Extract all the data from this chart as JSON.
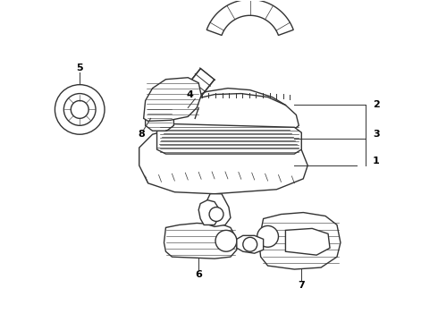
{
  "background_color": "#ffffff",
  "line_color": "#333333",
  "label_color": "#000000",
  "figsize": [
    4.9,
    3.6
  ],
  "dpi": 100
}
